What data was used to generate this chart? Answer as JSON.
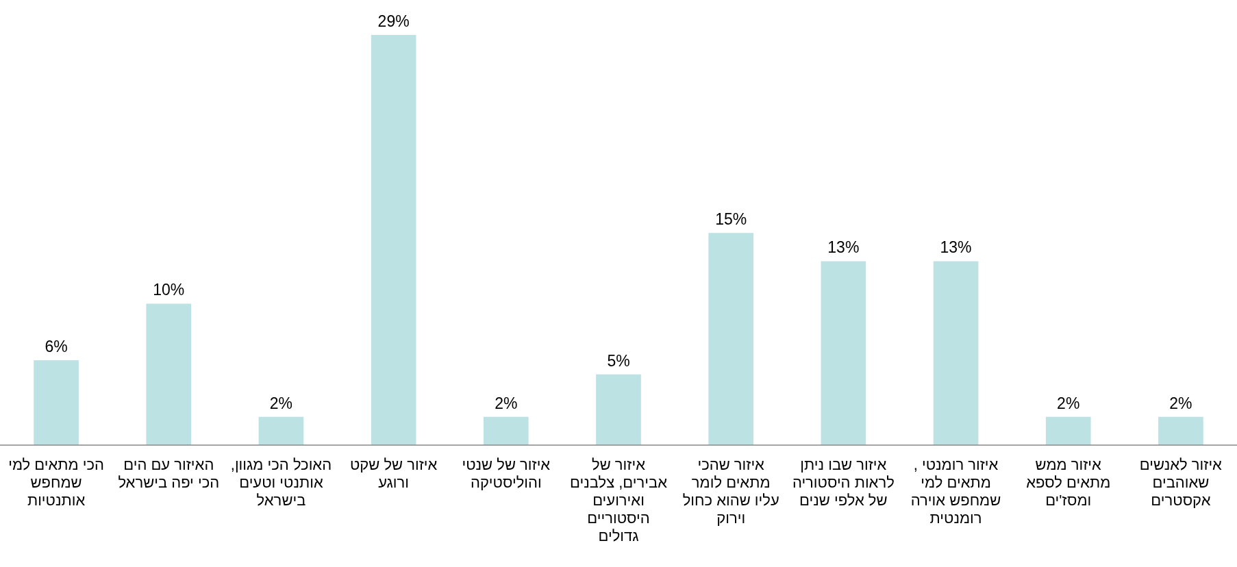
{
  "chart_data": {
    "type": "bar",
    "categories": [
      "הכי מתאים למי שמחפש אותנטיות",
      "האיזור עם הים הכי יפה בישראל",
      "האוכל הכי מגוון, אותנטי וטעים בישראל",
      "איזור של שקט ורוגע",
      "איזור של שנטי והוליסטיקה",
      "איזור של אבירים, צלבנים ואירועים היסטוריים גדולים",
      "איזור שהכי מתאים לומר עליו שהוא כחול וירוק",
      "איזור שבו ניתן לראות היסטוריה של אלפי שנים",
      "איזור רומנטי , מתאים למי שמחפש אוירה רומנטית",
      "איזור ממש מתאים לספא ומסז'ים",
      "איזור לאנשים שאוהבים אקסטרים"
    ],
    "values": [
      6,
      10,
      2,
      29,
      2,
      5,
      15,
      13,
      13,
      2,
      2
    ],
    "value_labels": [
      "6%",
      "10%",
      "2%",
      "29%",
      "2%",
      "5%",
      "15%",
      "13%",
      "13%",
      "2%",
      "2%"
    ],
    "color": "#bde2e4"
  }
}
